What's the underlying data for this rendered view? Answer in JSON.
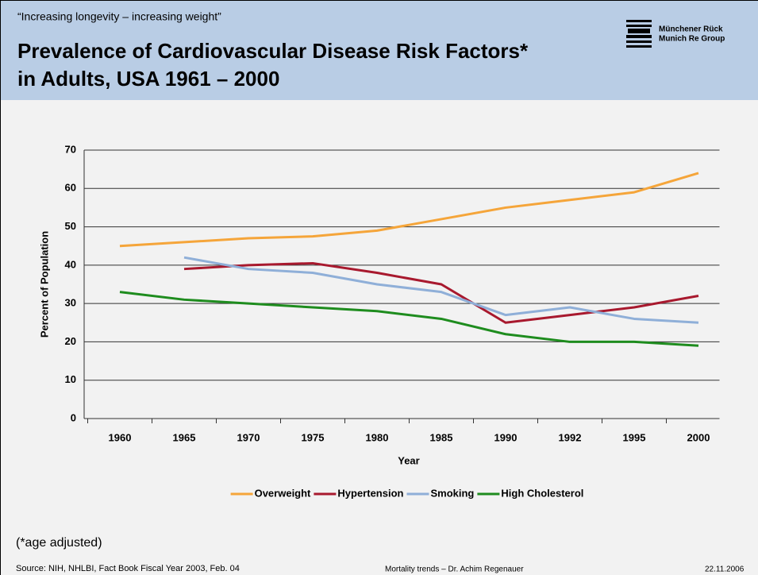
{
  "header": {
    "quote": "“Increasing longevity – increasing weight”",
    "title": [
      "Prevalence of Cardiovascular Disease Risk Factors*",
      "in Adults, USA 1961 – 2000"
    ],
    "logo": [
      "Münchener Rück",
      "Munich Re Group"
    ]
  },
  "chart_data": {
    "type": "line",
    "x_label": "Year",
    "y_label": "Percent of Population",
    "categories": [
      "1960",
      "1965",
      "1970",
      "1975",
      "1980",
      "1985",
      "1990",
      "1992",
      "1995",
      "2000"
    ],
    "series": [
      {
        "name": "Overweight",
        "color": "#f5a53a",
        "values": [
          45,
          46,
          47,
          47.5,
          49,
          52,
          55,
          57,
          59,
          64
        ]
      },
      {
        "name": "Hypertension",
        "color": "#a8192e",
        "values": [
          null,
          39,
          40,
          40.5,
          38,
          35,
          25,
          27,
          29,
          32
        ]
      },
      {
        "name": "Smoking",
        "color": "#8fafd8",
        "values": [
          null,
          42,
          39,
          38,
          35,
          33,
          27,
          29,
          26,
          25
        ]
      },
      {
        "name": "High Cholesterol",
        "color": "#1e8c1e",
        "values": [
          33,
          31,
          30,
          29,
          28,
          26,
          22,
          20,
          20,
          19
        ]
      }
    ],
    "ylim": [
      0,
      70
    ],
    "yticks": [
      0,
      10,
      20,
      30,
      40,
      50,
      60,
      70
    ],
    "grid": true,
    "legend": "bottom"
  },
  "footer": {
    "note": "(*age adjusted)",
    "source": "Source: NIH, NHLBI, Fact Book Fiscal Year 2003, Feb. 04",
    "author": "Mortality trends – Dr. Achim Regenauer",
    "date": "22.11.2006"
  }
}
